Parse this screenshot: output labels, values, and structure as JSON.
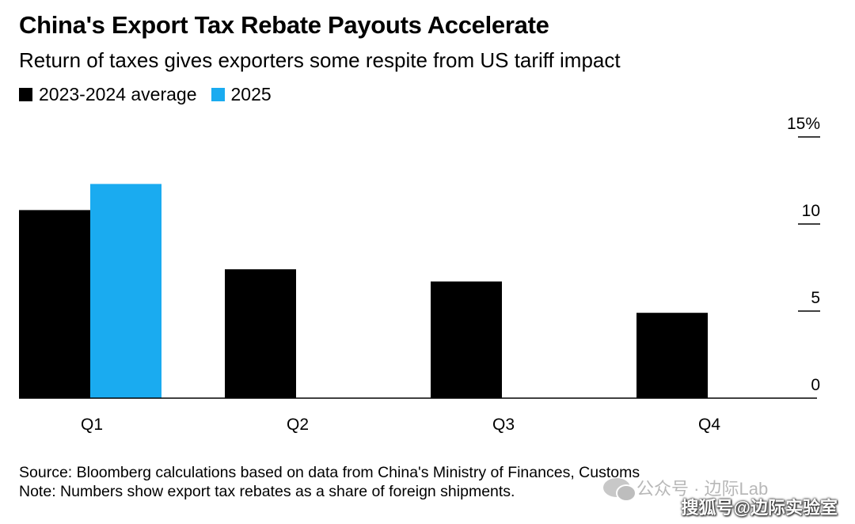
{
  "chart_data": {
    "type": "bar",
    "title": "China's Export Tax Rebate Payouts Accelerate",
    "subtitle": "Return of taxes gives exporters some respite from US tariff impact",
    "categories": [
      "Q1",
      "Q2",
      "Q3",
      "Q4"
    ],
    "series": [
      {
        "name": "2023-2024 average",
        "color": "#000000",
        "values": [
          10.8,
          7.4,
          6.7,
          4.9
        ]
      },
      {
        "name": "2025",
        "color": "#1aabf0",
        "values": [
          12.3,
          null,
          null,
          null
        ]
      }
    ],
    "yticks": [
      {
        "value": 0,
        "label": "0"
      },
      {
        "value": 5,
        "label": "5"
      },
      {
        "value": 10,
        "label": "10"
      },
      {
        "value": 15,
        "label": "15%"
      }
    ],
    "ylim": [
      0,
      15
    ],
    "ylabel_position": "right",
    "legend_position": "top-left",
    "grid": false
  },
  "source_text": "Source: Bloomberg calculations based on data from China's Ministry of Finances, Customs",
  "note_text": "Note: Numbers show export tax rebates as a share of foreign shipments.",
  "watermark": {
    "line1": "公众号 · 边际Lab",
    "line2": "搜狐号@边际实验室"
  }
}
